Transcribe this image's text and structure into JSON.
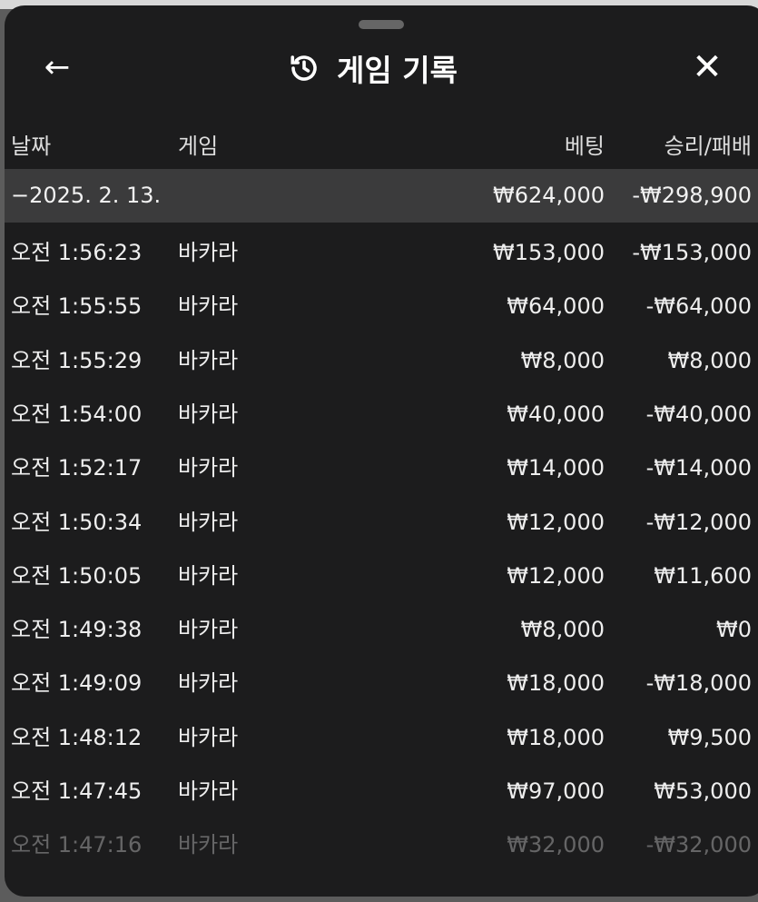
{
  "header": {
    "title": "게임 기록",
    "back_icon": "arrow-left-icon",
    "history_icon": "history-icon",
    "close_icon": "close-icon"
  },
  "columns": {
    "date": "날짜",
    "game": "게임",
    "bet": "베팅",
    "result": "승리/패배"
  },
  "summary": {
    "date": "−2025. 2. 13.",
    "bet": "₩624,000",
    "result": "-₩298,900"
  },
  "rows": [
    {
      "time": "오전 1:56:23",
      "game": "바카라",
      "bet": "₩153,000",
      "result": "-₩153,000"
    },
    {
      "time": "오전 1:55:55",
      "game": "바카라",
      "bet": "₩64,000",
      "result": "-₩64,000"
    },
    {
      "time": "오전 1:55:29",
      "game": "바카라",
      "bet": "₩8,000",
      "result": "₩8,000"
    },
    {
      "time": "오전 1:54:00",
      "game": "바카라",
      "bet": "₩40,000",
      "result": "-₩40,000"
    },
    {
      "time": "오전 1:52:17",
      "game": "바카라",
      "bet": "₩14,000",
      "result": "-₩14,000"
    },
    {
      "time": "오전 1:50:34",
      "game": "바카라",
      "bet": "₩12,000",
      "result": "-₩12,000"
    },
    {
      "time": "오전 1:50:05",
      "game": "바카라",
      "bet": "₩12,000",
      "result": "₩11,600"
    },
    {
      "time": "오전 1:49:38",
      "game": "바카라",
      "bet": "₩8,000",
      "result": "₩0"
    },
    {
      "time": "오전 1:49:09",
      "game": "바카라",
      "bet": "₩18,000",
      "result": "-₩18,000"
    },
    {
      "time": "오전 1:48:12",
      "game": "바카라",
      "bet": "₩18,000",
      "result": "₩9,500"
    },
    {
      "time": "오전 1:47:45",
      "game": "바카라",
      "bet": "₩97,000",
      "result": "₩53,000"
    },
    {
      "time": "오전 1:47:16",
      "game": "바카라",
      "bet": "₩32,000",
      "result": "-₩32,000"
    }
  ]
}
